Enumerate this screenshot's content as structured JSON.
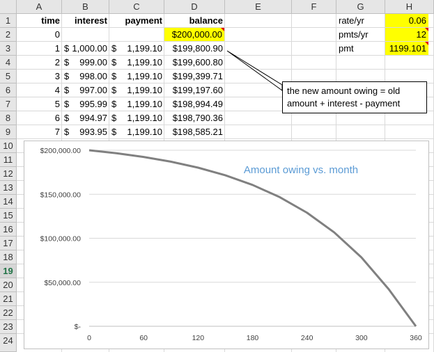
{
  "columns": [
    "A",
    "B",
    "C",
    "D",
    "E",
    "F",
    "G",
    "H"
  ],
  "rows": [
    "1",
    "2",
    "3",
    "4",
    "5",
    "6",
    "7",
    "8",
    "9",
    "10",
    "11",
    "12",
    "13",
    "14",
    "15",
    "16",
    "17",
    "18",
    "19",
    "20",
    "21",
    "22",
    "23",
    "24"
  ],
  "headers": {
    "time": "time",
    "interest": "interest",
    "payment": "payment",
    "balance": "balance"
  },
  "table": [
    {
      "time": "0",
      "interest": "",
      "payment": "",
      "balance": "$200,000.00"
    },
    {
      "time": "1",
      "interest_sym": "$",
      "interest": "1,000.00",
      "payment_sym": "$",
      "payment": "1,199.10",
      "balance": "$199,800.90"
    },
    {
      "time": "2",
      "interest_sym": "$",
      "interest": "999.00",
      "payment_sym": "$",
      "payment": "1,199.10",
      "balance": "$199,600.80"
    },
    {
      "time": "3",
      "interest_sym": "$",
      "interest": "998.00",
      "payment_sym": "$",
      "payment": "1,199.10",
      "balance": "$199,399.71"
    },
    {
      "time": "4",
      "interest_sym": "$",
      "interest": "997.00",
      "payment_sym": "$",
      "payment": "1,199.10",
      "balance": "$199,197.60"
    },
    {
      "time": "5",
      "interest_sym": "$",
      "interest": "995.99",
      "payment_sym": "$",
      "payment": "1,199.10",
      "balance": "$198,994.49"
    },
    {
      "time": "6",
      "interest_sym": "$",
      "interest": "994.97",
      "payment_sym": "$",
      "payment": "1,199.10",
      "balance": "$198,790.36"
    },
    {
      "time": "7",
      "interest_sym": "$",
      "interest": "993.95",
      "payment_sym": "$",
      "payment": "1,199.10",
      "balance": "$198,585.21"
    }
  ],
  "params": [
    {
      "label": "rate/yr",
      "value": "0.06"
    },
    {
      "label": "pmts/yr",
      "value": "12"
    },
    {
      "label": "pmt",
      "value": "1199.101"
    }
  ],
  "callout": {
    "line1": "the new amount owing = old",
    "line2": "amount + interest - payment"
  },
  "colors": {
    "highlight": "#ffff00",
    "chart_line": "#808080",
    "title": "#5b9bd5",
    "comment_marker": "#e00000",
    "selected_row": "#217346"
  },
  "chart_data": {
    "type": "line",
    "title": "Amount owing vs. month",
    "xlabel": "",
    "ylabel": "",
    "xlim": [
      0,
      360
    ],
    "ylim": [
      0,
      200000
    ],
    "x_ticks": [
      "0",
      "60",
      "120",
      "180",
      "240",
      "300",
      "360"
    ],
    "y_ticks": [
      "$-",
      "$50,000.00",
      "$100,000.00",
      "$150,000.00",
      "$200,000.00"
    ],
    "grid": "horizontal",
    "series": [
      {
        "x": [
          0,
          30,
          60,
          90,
          120,
          150,
          180,
          210,
          240,
          270,
          300,
          330,
          360
        ],
        "values": [
          200000,
          196652,
          192418,
          187048,
          180232,
          171586,
          160618,
          146703,
          129048,
          106658,
          78248,
          42188,
          0
        ]
      }
    ]
  }
}
